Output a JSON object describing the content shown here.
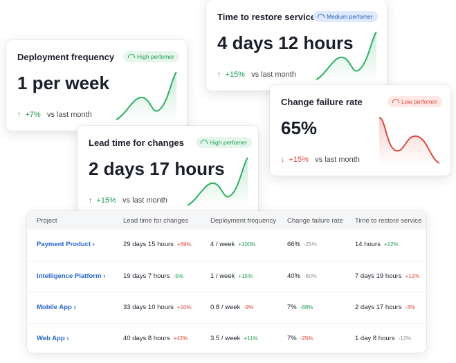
{
  "cards": [
    {
      "title": "Deployment frequency",
      "badge": "High perfomer",
      "value": "1 per week",
      "change": "+7%",
      "note": "vs last month"
    },
    {
      "title": "Time to restore service",
      "badge": "Medium perfomer",
      "value": "4 days 12 hours",
      "change": "+15%",
      "note": "vs last month"
    },
    {
      "title": "Change failure rate",
      "badge": "Low perfomer",
      "value": "65%",
      "change": "+15%",
      "note": "vs last month"
    },
    {
      "title": "Lead time for changes",
      "badge": "High perfomer",
      "value": "2 days 17 hours",
      "change": "+15%",
      "note": "vs last month"
    }
  ],
  "table": {
    "headers": [
      "Project",
      "Lead time for changes",
      "Deployment frequency",
      "Change failure rate",
      "Time to restore service"
    ],
    "rows": [
      {
        "project": "Payment Product",
        "cells": [
          {
            "value": "29 days 15 hours",
            "change": "+69%",
            "color": "#e0473c"
          },
          {
            "value": "4 / week",
            "change": "+100%",
            "color": "#1f9d55"
          },
          {
            "value": "66%",
            "change": "-25%",
            "color": "#8a8f98"
          },
          {
            "value": "14 hours",
            "change": "+12%",
            "color": "#1f9d55"
          }
        ]
      },
      {
        "project": "Intelligence Platform",
        "cells": [
          {
            "value": "19 days 7 hours",
            "change": "-5%",
            "color": "#1f9d55"
          },
          {
            "value": "1 / week",
            "change": "+15%",
            "color": "#1f9d55"
          },
          {
            "value": "40%",
            "change": "-60%",
            "color": "#8a8f98"
          },
          {
            "value": "7 days 19 hours",
            "change": "+12%",
            "color": "#e0473c"
          }
        ]
      },
      {
        "project": "Mobile App",
        "cells": [
          {
            "value": "33 days 10 hours",
            "change": "+10%",
            "color": "#e0473c"
          },
          {
            "value": "0.8 / week",
            "change": "-9%",
            "color": "#e0473c"
          },
          {
            "value": "7%",
            "change": "-88%",
            "color": "#1f9d55"
          },
          {
            "value": "2 days 17 hours",
            "change": "-3%",
            "color": "#e0473c"
          }
        ]
      },
      {
        "project": "Web App",
        "cells": [
          {
            "value": "40 days 8 hours",
            "change": "+42%",
            "color": "#e0473c"
          },
          {
            "value": "3.5 / week",
            "change": "+11%",
            "color": "#1f9d55"
          },
          {
            "value": "7%",
            "change": "-25%",
            "color": "#e0473c"
          },
          {
            "value": "1 day 8 hours",
            "change": "-12%",
            "color": "#8a8f98"
          }
        ]
      }
    ]
  }
}
